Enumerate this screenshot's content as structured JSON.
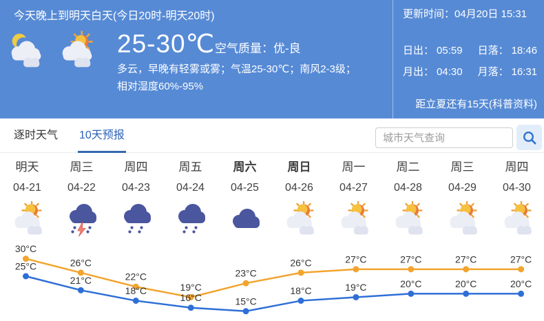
{
  "header": {
    "period_title": "今天晚上到明天白天(今日20时-明天20时)",
    "update_time_label": "更新时间：",
    "update_time": "04月20日 15:31",
    "icons": [
      "moon-cloud-icon",
      "sun-cloud-icon"
    ],
    "temp_range": "25-30℃",
    "air_quality_label": "空气质量：",
    "air_quality_value": "优-良",
    "desc_line1": "多云，早晚有轻雾或雾；气温25-30℃；南风2-3级；",
    "desc_line2": "相对湿度60%-95%",
    "sunrise_label": "日出：",
    "sunrise_time": "05:59",
    "sunset_label": "日落：",
    "sunset_time": "18:46",
    "moonrise_label": "月出：",
    "moonrise_time": "04:30",
    "moonset_label": "月落：",
    "moonset_time": "16:31",
    "solar_term_note": "距立夏还有15天(科普资料)"
  },
  "tabs": [
    {
      "label": "逐时天气",
      "active": false
    },
    {
      "label": "10天预报",
      "active": true
    }
  ],
  "search": {
    "placeholder": "城市天气查询",
    "icon": "search-icon"
  },
  "forecast": {
    "days": [
      {
        "day": "明天",
        "date": "04-21",
        "icon": "sun-cloud-icon",
        "bold": false
      },
      {
        "day": "周三",
        "date": "04-22",
        "icon": "thunderstorm-icon",
        "bold": false
      },
      {
        "day": "周四",
        "date": "04-23",
        "icon": "rain-icon",
        "bold": false
      },
      {
        "day": "周五",
        "date": "04-24",
        "icon": "rain-icon",
        "bold": false
      },
      {
        "day": "周六",
        "date": "04-25",
        "icon": "overcast-icon",
        "bold": true
      },
      {
        "day": "周日",
        "date": "04-26",
        "icon": "sun-cloud-icon",
        "bold": true
      },
      {
        "day": "周一",
        "date": "04-27",
        "icon": "sun-cloud-icon",
        "bold": false
      },
      {
        "day": "周二",
        "date": "04-28",
        "icon": "sun-cloud-icon",
        "bold": false
      },
      {
        "day": "周三",
        "date": "04-29",
        "icon": "sun-cloud-icon",
        "bold": false
      },
      {
        "day": "周四",
        "date": "04-30",
        "icon": "sun-cloud-icon",
        "bold": false
      }
    ]
  },
  "chart_data": {
    "type": "line",
    "categories": [
      "04-21",
      "04-22",
      "04-23",
      "04-24",
      "04-25",
      "04-26",
      "04-27",
      "04-28",
      "04-29",
      "04-30"
    ],
    "series": [
      {
        "name": "high-temp",
        "color": "#F2A42E",
        "values": [
          30,
          26,
          22,
          19,
          23,
          26,
          27,
          27,
          27,
          27
        ]
      },
      {
        "name": "low-temp",
        "color": "#2E6FD7",
        "values": [
          25,
          21,
          18,
          16,
          15,
          18,
          19,
          20,
          20,
          20
        ]
      }
    ],
    "unit": "°C",
    "ylim": [
      13,
      32
    ],
    "grid": false,
    "legend": "none",
    "value_labels": true
  },
  "colors": {
    "header_bg": "#568AD5",
    "accent_blue": "#2D62B7",
    "high_line": "#F2A42E",
    "low_line": "#2E6FD7",
    "text_dark": "#333333"
  }
}
